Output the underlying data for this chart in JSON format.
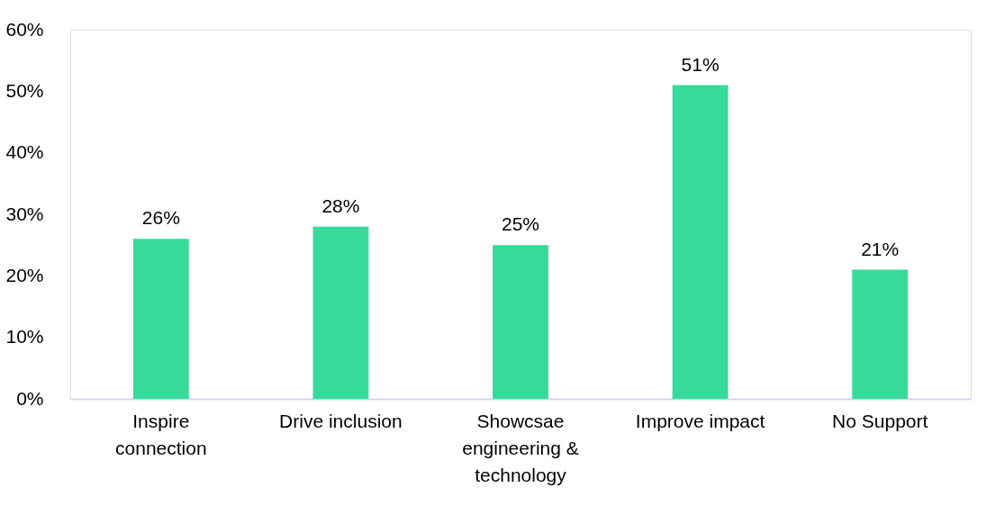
{
  "chart_data": {
    "type": "bar",
    "categories": [
      "Inspire connection",
      "Drive inclusion",
      "Showcsae engineering & technology",
      "Improve impact",
      "No Support"
    ],
    "values": [
      26,
      28,
      25,
      51,
      21
    ],
    "value_labels": [
      "26%",
      "28%",
      "25%",
      "51%",
      "21%"
    ],
    "color": "#36db9a",
    "ylim": [
      0,
      60
    ],
    "yticks": [
      {
        "value": 0,
        "label": "0%"
      },
      {
        "value": 10,
        "label": "10%"
      },
      {
        "value": 20,
        "label": "20%"
      },
      {
        "value": 30,
        "label": "30%"
      },
      {
        "value": 40,
        "label": "40%"
      },
      {
        "value": 50,
        "label": "50%"
      },
      {
        "value": 60,
        "label": "60%"
      }
    ],
    "grid": false
  }
}
